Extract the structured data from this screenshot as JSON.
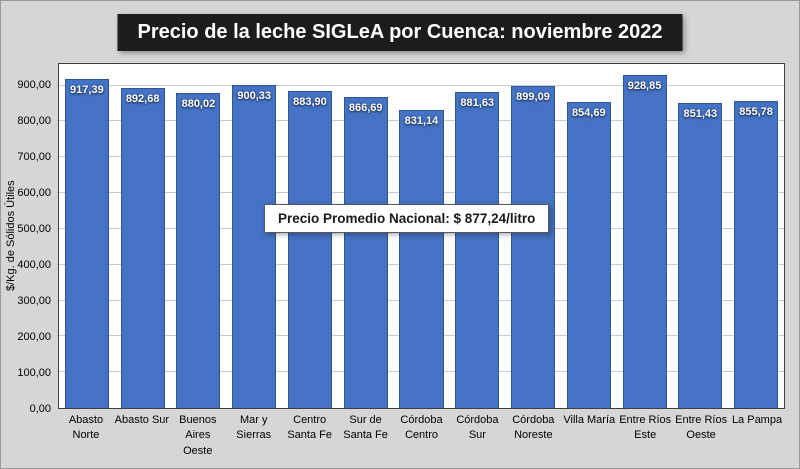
{
  "colors": {
    "bar_fill": "#4472C4",
    "bar_border": "#2E5693",
    "background": "#D6D6D6",
    "plot_background": "#FFFFFF",
    "title_background": "#1C1C1C",
    "title_text": "#FFFFFF",
    "gridline": "#CBCBCB"
  },
  "chart_data": {
    "type": "bar",
    "title": "Precio de la leche SIGLeA por Cuenca: noviembre 2022",
    "ylabel": "$/Kg. de Sólidos Útiles",
    "xlabel": "",
    "categories": [
      "Abasto Norte",
      "Abasto Sur",
      "Buenos Aires Oeste",
      "Mar y Sierras",
      "Centro Santa Fe",
      "Sur de Santa Fe",
      "Córdoba Centro",
      "Córdoba Sur",
      "Córdoba Noreste",
      "Villa María",
      "Entre Ríos Este",
      "Entre Ríos Oeste",
      "La Pampa"
    ],
    "category_lines": [
      [
        "Abasto",
        "Norte"
      ],
      [
        "Abasto Sur"
      ],
      [
        "Buenos",
        "Aires",
        "Oeste"
      ],
      [
        "Mar y",
        "Sierras"
      ],
      [
        "Centro",
        "Santa Fe"
      ],
      [
        "Sur de",
        "Santa Fe"
      ],
      [
        "Córdoba",
        "Centro"
      ],
      [
        "Córdoba",
        "Sur"
      ],
      [
        "Córdoba",
        "Noreste"
      ],
      [
        "Villa María"
      ],
      [
        "Entre Ríos",
        "Este"
      ],
      [
        "Entre Ríos",
        "Oeste"
      ],
      [
        "La Pampa"
      ]
    ],
    "values": [
      917.39,
      892.68,
      880.02,
      900.33,
      883.9,
      866.69,
      831.14,
      881.63,
      899.09,
      854.69,
      928.85,
      851.43,
      855.78
    ],
    "value_labels": [
      "917,39",
      "892,68",
      "880,02",
      "900,33",
      "883,90",
      "866,69",
      "831,14",
      "881,63",
      "899,09",
      "854,69",
      "928,85",
      "851,43",
      "855,78"
    ],
    "ylim": [
      0,
      960
    ],
    "ytick_interval": 100,
    "ytick_labels": [
      "0,00",
      "100,00",
      "200,00",
      "300,00",
      "400,00",
      "500,00",
      "600,00",
      "700,00",
      "800,00",
      "900,00"
    ],
    "grid": true,
    "legend": false,
    "annotation": "Precio Promedio Nacional: $ 877,24/litro"
  }
}
